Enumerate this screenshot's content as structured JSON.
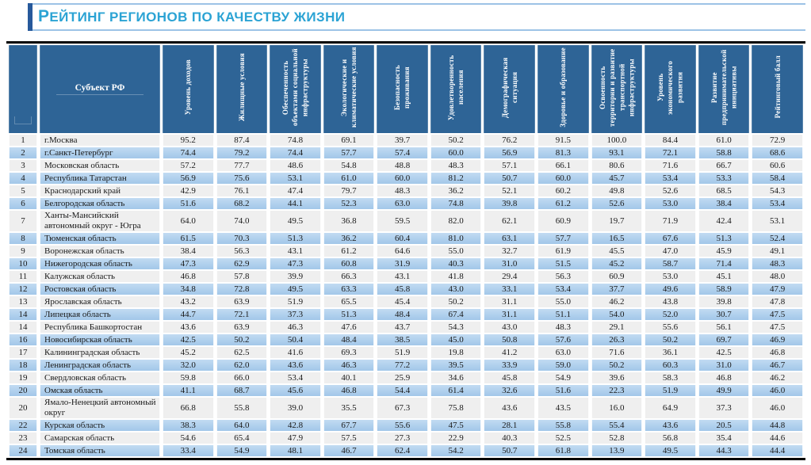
{
  "title": "РЕЙТИНГ РЕГИОНОВ ПО КАЧЕСТВУ ЖИЗНИ",
  "colors": {
    "title_text": "#2BA3D4",
    "title_rule": "#9DC3E6",
    "accent_bar": "#27599B",
    "header_bg": "#2E6496",
    "header_text": "#FFFFFF",
    "row_gray": "#EFEFEF",
    "row_blue": "#A9CCEC",
    "body_text": "#1A1A1A",
    "table_border": "#000000"
  },
  "table": {
    "region_header": "Субъект РФ",
    "columns": [
      "Уровень доходов",
      "Жилищные условия",
      "Обеспеченность объектами социальной инфраструктуры",
      "Экологические и климатические условия",
      "Безопасность проживания",
      "Удовлетворенность населения",
      "Демографическая ситуация",
      "Здоровье и образование",
      "Освоенность территории и развитие транспортной инфраструктуры",
      "Уровень экономического развития",
      "Развитие предпринимательской инициативы",
      "Рейтинговый балл"
    ],
    "rows": [
      {
        "rank": "1",
        "region": "г.Москва",
        "values": [
          "95.2",
          "87.4",
          "74.8",
          "69.1",
          "39.7",
          "50.2",
          "76.2",
          "91.5",
          "100.0",
          "84.4",
          "61.0",
          "72.9"
        ]
      },
      {
        "rank": "2",
        "region": "г.Санкт-Петербург",
        "values": [
          "74.4",
          "79.2",
          "74.4",
          "57.7",
          "57.4",
          "60.0",
          "56.9",
          "81.3",
          "93.1",
          "72.1",
          "58.8",
          "68.6"
        ]
      },
      {
        "rank": "3",
        "region": "Московская область",
        "values": [
          "57.2",
          "77.7",
          "48.6",
          "54.8",
          "48.8",
          "48.3",
          "57.1",
          "66.1",
          "80.6",
          "71.6",
          "66.7",
          "60.6"
        ]
      },
      {
        "rank": "4",
        "region": "Республика Татарстан",
        "values": [
          "56.9",
          "75.6",
          "53.1",
          "61.0",
          "60.0",
          "81.2",
          "50.7",
          "60.0",
          "45.7",
          "53.4",
          "53.3",
          "58.4"
        ]
      },
      {
        "rank": "5",
        "region": "Краснодарский край",
        "values": [
          "42.9",
          "76.1",
          "47.4",
          "79.7",
          "48.3",
          "36.2",
          "52.1",
          "60.2",
          "49.8",
          "52.6",
          "68.5",
          "54.3"
        ]
      },
      {
        "rank": "6",
        "region": "Белгородская область",
        "values": [
          "51.6",
          "68.2",
          "44.1",
          "52.3",
          "63.0",
          "74.8",
          "39.8",
          "61.2",
          "52.6",
          "53.0",
          "38.4",
          "53.4"
        ]
      },
      {
        "rank": "7",
        "region": "Ханты-Мансийский автономный округ - Югра",
        "values": [
          "64.0",
          "74.0",
          "49.5",
          "36.8",
          "59.5",
          "82.0",
          "62.1",
          "60.9",
          "19.7",
          "71.9",
          "42.4",
          "53.1"
        ]
      },
      {
        "rank": "8",
        "region": "Тюменская область",
        "values": [
          "61.5",
          "70.3",
          "51.3",
          "36.2",
          "60.4",
          "81.0",
          "63.1",
          "57.7",
          "16.5",
          "67.6",
          "51.3",
          "52.4"
        ]
      },
      {
        "rank": "9",
        "region": "Воронежская область",
        "values": [
          "38.4",
          "56.3",
          "43.1",
          "61.2",
          "64.6",
          "55.0",
          "32.7",
          "61.9",
          "45.5",
          "47.0",
          "45.9",
          "49.1"
        ]
      },
      {
        "rank": "10",
        "region": "Нижегородская область",
        "values": [
          "47.3",
          "62.9",
          "47.3",
          "60.8",
          "31.9",
          "40.3",
          "31.0",
          "51.5",
          "45.2",
          "58.7",
          "71.4",
          "48.3"
        ]
      },
      {
        "rank": "11",
        "region": "Калужская область",
        "values": [
          "46.8",
          "57.8",
          "39.9",
          "66.3",
          "43.1",
          "41.8",
          "29.4",
          "56.3",
          "60.9",
          "53.0",
          "45.1",
          "48.0"
        ]
      },
      {
        "rank": "12",
        "region": "Ростовская область",
        "values": [
          "34.8",
          "72.8",
          "49.5",
          "63.3",
          "45.8",
          "43.0",
          "33.1",
          "53.4",
          "37.7",
          "49.6",
          "58.9",
          "47.9"
        ]
      },
      {
        "rank": "13",
        "region": "Ярославская область",
        "values": [
          "43.2",
          "63.9",
          "51.9",
          "65.5",
          "45.4",
          "50.2",
          "31.1",
          "55.0",
          "46.2",
          "43.8",
          "39.8",
          "47.8"
        ]
      },
      {
        "rank": "14",
        "region": "Липецкая область",
        "values": [
          "44.7",
          "72.1",
          "37.3",
          "51.3",
          "48.4",
          "67.4",
          "31.1",
          "51.1",
          "54.0",
          "52.0",
          "30.7",
          "47.5"
        ]
      },
      {
        "rank": "14",
        "region": "Республика Башкортостан",
        "values": [
          "43.6",
          "63.9",
          "46.3",
          "47.6",
          "43.7",
          "54.3",
          "43.0",
          "48.3",
          "29.1",
          "55.6",
          "56.1",
          "47.5"
        ]
      },
      {
        "rank": "16",
        "region": "Новосибирская область",
        "values": [
          "42.5",
          "50.2",
          "50.4",
          "48.4",
          "38.5",
          "45.0",
          "50.8",
          "57.6",
          "26.3",
          "50.2",
          "69.7",
          "46.9"
        ]
      },
      {
        "rank": "17",
        "region": "Калининградская область",
        "values": [
          "45.2",
          "62.5",
          "41.6",
          "69.3",
          "51.9",
          "19.8",
          "41.2",
          "63.0",
          "71.6",
          "36.1",
          "42.5",
          "46.8"
        ]
      },
      {
        "rank": "18",
        "region": "Ленинградская область",
        "values": [
          "32.0",
          "62.0",
          "43.6",
          "46.3",
          "77.2",
          "39.5",
          "33.9",
          "59.0",
          "50.2",
          "60.3",
          "31.0",
          "46.7"
        ]
      },
      {
        "rank": "19",
        "region": "Свердловская область",
        "values": [
          "59.8",
          "66.0",
          "53.4",
          "40.1",
          "25.9",
          "34.6",
          "45.8",
          "54.9",
          "39.6",
          "58.3",
          "46.8",
          "46.2"
        ]
      },
      {
        "rank": "20",
        "region": "Омская область",
        "values": [
          "41.1",
          "68.7",
          "45.6",
          "46.8",
          "54.4",
          "61.4",
          "32.6",
          "51.6",
          "22.3",
          "51.9",
          "49.9",
          "46.0"
        ]
      },
      {
        "rank": "20",
        "region": "Ямало-Ненецкий автономный округ",
        "values": [
          "66.8",
          "55.8",
          "39.0",
          "35.5",
          "67.3",
          "75.8",
          "43.6",
          "43.5",
          "16.0",
          "64.9",
          "37.3",
          "46.0"
        ]
      },
      {
        "rank": "22",
        "region": "Курская область",
        "values": [
          "38.3",
          "64.0",
          "42.8",
          "67.7",
          "55.6",
          "47.5",
          "28.1",
          "55.8",
          "55.4",
          "43.6",
          "20.5",
          "44.8"
        ]
      },
      {
        "rank": "23",
        "region": "Самарская область",
        "values": [
          "54.6",
          "65.4",
          "47.9",
          "57.5",
          "27.3",
          "22.9",
          "40.3",
          "52.5",
          "52.8",
          "56.8",
          "35.4",
          "44.6"
        ]
      },
      {
        "rank": "24",
        "region": "Томская область",
        "values": [
          "33.4",
          "54.9",
          "48.1",
          "46.7",
          "62.4",
          "54.2",
          "50.7",
          "61.8",
          "13.9",
          "49.5",
          "44.3",
          "44.4"
        ]
      }
    ]
  }
}
